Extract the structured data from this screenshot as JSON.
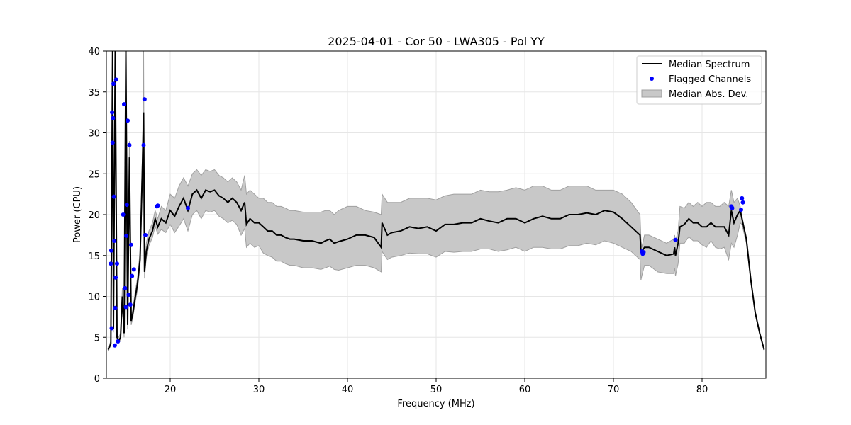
{
  "chart_data": {
    "type": "line",
    "title": "2025-04-01 - Cor 50 - LWA305 - Pol YY",
    "xlabel": "Frequency (MHz)",
    "ylabel": "Power (CPU)",
    "xlim": [
      12.8,
      87.2
    ],
    "ylim": [
      0,
      40
    ],
    "xticks": [
      20,
      30,
      40,
      50,
      60,
      70,
      80
    ],
    "yticks": [
      0,
      5,
      10,
      15,
      20,
      25,
      30,
      35,
      40
    ],
    "grid": true,
    "legend_position": "top-right",
    "legend": [
      "Median Spectrum",
      "Flagged Channels",
      "Median Abs. Dev."
    ],
    "colors": {
      "median": "#000000",
      "flagged": "#0000ff",
      "mad_fill": "#c8c8c8",
      "mad_edge": "#a0a0a0"
    },
    "series": [
      {
        "name": "Median Spectrum",
        "x": [
          13.0,
          13.3,
          13.5,
          13.6,
          13.8,
          14.0,
          14.2,
          14.4,
          14.6,
          14.8,
          15.0,
          15.2,
          15.4,
          15.6,
          15.8,
          16.0,
          16.3,
          16.6,
          16.9,
          17.0,
          17.1,
          17.3,
          17.6,
          18.0,
          18.3,
          18.6,
          19.0,
          19.5,
          20.0,
          20.5,
          21.0,
          21.5,
          22.0,
          22.5,
          23.0,
          23.5,
          24.0,
          24.5,
          25.0,
          25.5,
          26.0,
          26.5,
          27.0,
          27.5,
          28.0,
          28.4,
          28.6,
          29.0,
          29.5,
          30.0,
          30.5,
          31.0,
          31.5,
          32.0,
          32.5,
          33.0,
          33.5,
          34.0,
          35.0,
          36.0,
          37.0,
          37.5,
          38.0,
          38.5,
          39.0,
          40.0,
          41.0,
          42.0,
          43.0,
          43.8,
          43.9,
          44.5,
          45.0,
          46.0,
          47.0,
          48.0,
          49.0,
          50.0,
          51.0,
          52.0,
          53.0,
          54.0,
          55.0,
          56.0,
          57.0,
          58.0,
          59.0,
          60.0,
          61.0,
          62.0,
          63.0,
          64.0,
          65.0,
          66.0,
          67.0,
          68.0,
          69.0,
          70.0,
          71.0,
          72.0,
          73.0,
          73.1,
          73.2,
          73.5,
          74.0,
          75.0,
          76.0,
          76.8,
          76.9,
          77.0,
          77.3,
          77.5,
          78.0,
          78.5,
          79.0,
          79.5,
          80.0,
          80.5,
          81.0,
          81.5,
          82.0,
          82.5,
          83.0,
          83.3,
          83.6,
          84.0,
          84.3,
          84.5,
          85.0,
          85.5,
          86.0,
          86.5,
          87.0
        ],
        "y": [
          3.5,
          4.2,
          40,
          6.0,
          40,
          5.0,
          4.6,
          5.0,
          10.0,
          5.5,
          40,
          6.5,
          27.0,
          7.0,
          8.0,
          9.5,
          11.5,
          14.5,
          27.0,
          32.5,
          13.0,
          15.5,
          17.0,
          18.0,
          19.5,
          18.5,
          19.5,
          19.0,
          20.5,
          19.8,
          21.0,
          22.0,
          20.5,
          22.5,
          23.0,
          22.0,
          23.0,
          22.8,
          23.0,
          22.3,
          22.0,
          21.5,
          22.0,
          21.5,
          20.5,
          21.5,
          18.8,
          19.5,
          19.0,
          19.0,
          18.5,
          18.0,
          18.0,
          17.5,
          17.5,
          17.2,
          17.0,
          17.0,
          16.8,
          16.8,
          16.5,
          16.8,
          17.0,
          16.5,
          16.7,
          17.0,
          17.5,
          17.5,
          17.2,
          16.0,
          19.0,
          17.5,
          17.8,
          18.0,
          18.5,
          18.3,
          18.5,
          18.0,
          18.8,
          18.8,
          19.0,
          19.0,
          19.5,
          19.2,
          19.0,
          19.5,
          19.5,
          19.0,
          19.5,
          19.8,
          19.5,
          19.5,
          20.0,
          20.0,
          20.2,
          20.0,
          20.5,
          20.3,
          19.5,
          18.5,
          17.5,
          15.5,
          15.5,
          16.0,
          16.0,
          15.5,
          15.0,
          15.2,
          16.0,
          15.0,
          16.5,
          18.5,
          18.8,
          19.5,
          19.0,
          19.0,
          18.5,
          18.5,
          19.0,
          18.5,
          18.5,
          18.5,
          17.5,
          20.5,
          19.0,
          20.0,
          20.5,
          19.5,
          17.0,
          12.0,
          8.0,
          5.5,
          3.5
        ],
        "mad_upper": [
          3.8,
          4.5,
          40,
          6.5,
          40,
          5.4,
          5.0,
          5.5,
          11.0,
          6.0,
          40,
          7.0,
          29.0,
          7.5,
          8.6,
          10.2,
          12.2,
          15.5,
          29.0,
          40,
          14.0,
          16.5,
          18.0,
          19.0,
          20.5,
          19.5,
          21.0,
          20.5,
          22.5,
          22.0,
          23.5,
          24.5,
          23.5,
          25.0,
          25.5,
          24.8,
          25.5,
          25.3,
          25.5,
          24.8,
          24.5,
          24.0,
          24.5,
          24.0,
          23.0,
          24.8,
          22.5,
          23.0,
          22.5,
          22.0,
          22.0,
          21.5,
          21.5,
          21.0,
          21.0,
          20.8,
          20.5,
          20.5,
          20.3,
          20.3,
          20.3,
          20.5,
          20.5,
          20.0,
          20.5,
          21.0,
          21.0,
          20.5,
          20.3,
          20.0,
          22.5,
          21.5,
          21.5,
          21.5,
          22.0,
          22.0,
          22.0,
          21.8,
          22.3,
          22.5,
          22.5,
          22.5,
          23.0,
          22.8,
          22.8,
          23.0,
          23.3,
          23.0,
          23.5,
          23.5,
          23.0,
          23.0,
          23.5,
          23.5,
          23.5,
          23.0,
          23.0,
          23.0,
          22.5,
          21.5,
          20.0,
          17.0,
          16.0,
          17.5,
          17.5,
          17.0,
          16.5,
          17.0,
          17.5,
          16.8,
          18.0,
          21.0,
          20.8,
          21.5,
          21.0,
          21.5,
          21.0,
          21.5,
          21.5,
          21.0,
          21.0,
          21.5,
          21.0,
          23.0,
          21.5,
          22.0,
          21.0,
          19.8,
          17.2,
          12.2,
          8.2,
          5.6,
          3.6
        ],
        "mad_lower": [
          3.3,
          4.0,
          40,
          5.6,
          40,
          4.7,
          4.3,
          4.6,
          9.3,
          5.0,
          40,
          6.0,
          25.0,
          6.5,
          7.5,
          8.9,
          10.8,
          13.6,
          25.0,
          28.0,
          12.2,
          14.7,
          16.2,
          17.2,
          18.6,
          17.6,
          18.2,
          17.8,
          18.8,
          17.8,
          18.6,
          19.5,
          18.0,
          20.0,
          20.5,
          19.5,
          20.5,
          20.3,
          20.5,
          19.8,
          19.5,
          19.0,
          19.3,
          18.8,
          17.5,
          18.3,
          16.0,
          16.5,
          16.0,
          16.2,
          15.3,
          15.0,
          14.8,
          14.3,
          14.3,
          14.0,
          13.8,
          13.8,
          13.5,
          13.5,
          13.3,
          13.5,
          13.7,
          13.3,
          13.2,
          13.5,
          13.8,
          13.8,
          13.5,
          13.0,
          15.5,
          14.5,
          14.8,
          15.0,
          15.3,
          15.2,
          15.2,
          14.8,
          15.5,
          15.4,
          15.5,
          15.5,
          15.8,
          15.8,
          15.5,
          15.7,
          16.0,
          15.5,
          16.0,
          16.0,
          15.8,
          15.8,
          16.2,
          16.2,
          16.5,
          16.3,
          16.8,
          16.5,
          16.0,
          15.5,
          14.5,
          12.0,
          12.5,
          13.8,
          13.8,
          13.0,
          12.8,
          12.8,
          13.5,
          12.5,
          14.0,
          16.5,
          16.5,
          17.3,
          16.8,
          16.8,
          16.3,
          16.0,
          16.8,
          16.0,
          15.8,
          16.0,
          14.5,
          16.5,
          16.0,
          17.5,
          19.0,
          18.8,
          16.5,
          11.8,
          7.8,
          5.4,
          3.4
        ]
      },
      {
        "name": "Flagged Channels",
        "x": [
          13.3,
          13.35,
          13.4,
          13.45,
          13.5,
          13.55,
          13.6,
          13.65,
          13.7,
          13.75,
          13.8,
          13.85,
          13.9,
          14.0,
          14.1,
          14.7,
          14.8,
          14.9,
          15.0,
          15.05,
          15.1,
          15.2,
          15.3,
          15.4,
          15.5,
          15.6,
          15.7,
          15.9,
          17.0,
          17.1,
          17.2,
          18.5,
          18.6,
          22.0,
          73.2,
          73.3,
          73.4,
          77.0,
          83.3,
          83.4,
          84.4,
          84.5,
          84.6
        ],
        "y": [
          14.0,
          15.6,
          6.1,
          32.5,
          28.8,
          31.8,
          36.0,
          22.2,
          16.8,
          4.0,
          8.6,
          12.3,
          36.5,
          14.0,
          4.5,
          20.0,
          33.5,
          11.0,
          8.7,
          17.4,
          21.2,
          31.5,
          10.2,
          28.5,
          9.0,
          16.3,
          12.5,
          13.3,
          28.5,
          34.1,
          17.5,
          21.0,
          21.1,
          20.8,
          15.5,
          15.2,
          15.4,
          16.9,
          21.0,
          20.8,
          20.6,
          22.0,
          21.5
        ]
      }
    ]
  }
}
